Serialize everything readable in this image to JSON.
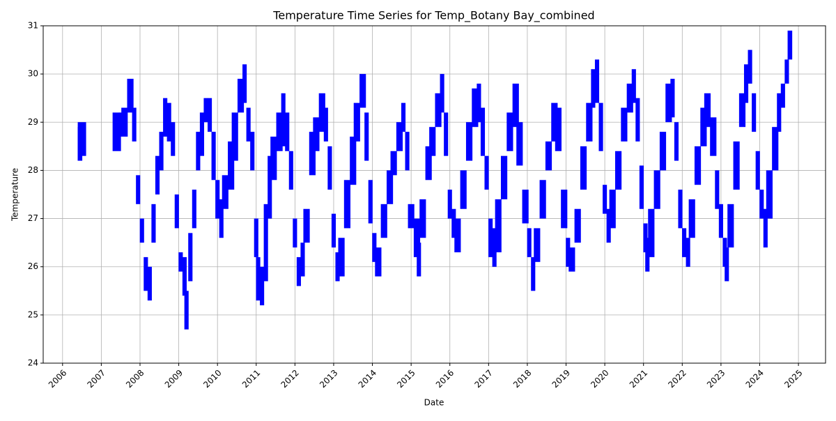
{
  "chart_data": {
    "type": "range",
    "title": "Temperature Time Series for Temp_Botany Bay_combined",
    "x_label": "Date",
    "y_label": "Temperature",
    "color": "#0000ff",
    "grid": true,
    "xlim": [
      2005.5,
      2025.7
    ],
    "ylim": [
      24,
      31
    ],
    "xticks": [
      2006,
      2007,
      2008,
      2009,
      2010,
      2011,
      2012,
      2013,
      2014,
      2015,
      2016,
      2017,
      2018,
      2019,
      2020,
      2021,
      2022,
      2023,
      2024,
      2025
    ],
    "yticks": [
      24,
      25,
      26,
      27,
      28,
      29,
      30,
      31
    ],
    "x": [
      2006.45,
      2006.5,
      2007.4,
      2007.5,
      2007.6,
      2007.75,
      2007.85,
      2007.95,
      2008.05,
      2008.15,
      2008.25,
      2008.35,
      2008.45,
      2008.55,
      2008.65,
      2008.75,
      2008.85,
      2008.95,
      2009.05,
      2009.15,
      2009.2,
      2009.3,
      2009.4,
      2009.5,
      2009.6,
      2009.7,
      2009.8,
      2009.9,
      2010.0,
      2010.1,
      2010.2,
      2010.35,
      2010.45,
      2010.6,
      2010.7,
      2010.8,
      2010.9,
      2011.0,
      2011.05,
      2011.15,
      2011.25,
      2011.35,
      2011.45,
      2011.6,
      2011.7,
      2011.8,
      2011.9,
      2012.0,
      2012.1,
      2012.2,
      2012.3,
      2012.45,
      2012.55,
      2012.7,
      2012.8,
      2012.9,
      2013.0,
      2013.1,
      2013.2,
      2013.35,
      2013.5,
      2013.6,
      2013.75,
      2013.85,
      2013.95,
      2014.05,
      2014.15,
      2014.3,
      2014.45,
      2014.55,
      2014.7,
      2014.8,
      2014.9,
      2015.0,
      2015.15,
      2015.2,
      2015.3,
      2015.45,
      2015.55,
      2015.7,
      2015.8,
      2015.9,
      2016.0,
      2016.1,
      2016.2,
      2016.35,
      2016.5,
      2016.65,
      2016.75,
      2016.85,
      2016.95,
      2017.05,
      2017.15,
      2017.25,
      2017.4,
      2017.55,
      2017.7,
      2017.8,
      2017.95,
      2018.05,
      2018.15,
      2018.25,
      2018.4,
      2018.55,
      2018.7,
      2018.8,
      2018.95,
      2019.05,
      2019.15,
      2019.3,
      2019.45,
      2019.6,
      2019.7,
      2019.8,
      2019.9,
      2020.0,
      2020.1,
      2020.2,
      2020.35,
      2020.5,
      2020.65,
      2020.75,
      2020.85,
      2020.95,
      2021.05,
      2021.1,
      2021.2,
      2021.35,
      2021.5,
      2021.65,
      2021.75,
      2021.85,
      2021.95,
      2022.05,
      2022.15,
      2022.25,
      2022.4,
      2022.55,
      2022.65,
      2022.8,
      2022.9,
      2023.0,
      2023.1,
      2023.15,
      2023.25,
      2023.4,
      2023.55,
      2023.65,
      2023.75,
      2023.85,
      2023.95,
      2024.05,
      2024.15,
      2024.25,
      2024.4,
      2024.5,
      2024.6,
      2024.7,
      2024.78
    ],
    "low": [
      28.2,
      28.3,
      28.4,
      28.7,
      28.7,
      29.2,
      28.6,
      27.3,
      26.5,
      25.5,
      25.3,
      26.5,
      27.5,
      28.0,
      28.7,
      28.6,
      28.3,
      26.8,
      25.9,
      25.4,
      24.7,
      25.7,
      26.8,
      28.0,
      28.3,
      29.0,
      28.8,
      27.8,
      27.0,
      26.6,
      27.2,
      27.6,
      28.2,
      29.2,
      29.4,
      28.6,
      28.0,
      26.2,
      25.3,
      25.2,
      25.7,
      27.0,
      27.8,
      28.4,
      28.5,
      28.4,
      27.6,
      26.4,
      25.6,
      25.8,
      26.5,
      27.9,
      28.4,
      28.8,
      28.6,
      27.6,
      26.4,
      25.7,
      25.8,
      26.8,
      27.7,
      28.6,
      29.3,
      28.2,
      26.9,
      26.1,
      25.8,
      26.6,
      27.3,
      27.9,
      28.4,
      28.8,
      28.0,
      26.8,
      26.2,
      25.8,
      26.6,
      27.8,
      28.3,
      28.9,
      29.2,
      28.3,
      27.0,
      26.6,
      26.3,
      27.2,
      28.2,
      28.9,
      29.0,
      28.3,
      27.6,
      26.2,
      26.0,
      26.3,
      27.4,
      28.4,
      28.9,
      28.1,
      26.9,
      26.2,
      25.5,
      26.1,
      27.0,
      28.0,
      28.6,
      28.4,
      26.8,
      26.0,
      25.9,
      26.5,
      27.6,
      28.6,
      29.3,
      29.4,
      28.4,
      27.1,
      26.5,
      26.8,
      27.6,
      28.6,
      29.2,
      29.4,
      28.6,
      27.2,
      26.3,
      25.9,
      26.2,
      27.2,
      28.0,
      29.0,
      29.1,
      28.2,
      26.8,
      26.2,
      26.0,
      26.6,
      27.7,
      28.5,
      28.9,
      28.3,
      27.2,
      26.6,
      26.0,
      25.7,
      26.4,
      27.6,
      28.9,
      29.4,
      29.8,
      28.8,
      27.6,
      27.0,
      26.4,
      27.0,
      28.0,
      28.8,
      29.3,
      29.8,
      30.3
    ],
    "high": [
      28.9,
      29.0,
      29.2,
      29.2,
      29.3,
      29.9,
      29.3,
      27.9,
      27.0,
      26.2,
      26.0,
      27.3,
      28.3,
      28.8,
      29.5,
      29.4,
      29.0,
      27.5,
      26.3,
      26.2,
      25.5,
      26.7,
      27.6,
      28.8,
      29.2,
      29.5,
      29.5,
      28.8,
      27.8,
      27.4,
      27.9,
      28.6,
      29.2,
      29.9,
      30.2,
      29.3,
      28.8,
      27.0,
      26.2,
      26.0,
      27.3,
      28.3,
      28.7,
      29.2,
      29.6,
      29.2,
      28.4,
      27.0,
      26.2,
      26.5,
      27.2,
      28.8,
      29.1,
      29.6,
      29.3,
      28.5,
      27.1,
      26.3,
      26.6,
      27.8,
      28.7,
      29.4,
      30.0,
      29.2,
      27.8,
      26.7,
      26.4,
      27.3,
      28.0,
      28.4,
      29.0,
      29.4,
      28.8,
      27.3,
      27.0,
      26.5,
      27.4,
      28.5,
      28.9,
      29.6,
      30.0,
      29.2,
      27.6,
      27.2,
      27.0,
      28.0,
      29.0,
      29.7,
      29.8,
      29.3,
      28.3,
      27.0,
      26.8,
      27.4,
      28.3,
      29.2,
      29.8,
      29.0,
      27.6,
      26.8,
      26.2,
      26.8,
      27.8,
      28.6,
      29.4,
      29.3,
      27.6,
      26.6,
      26.4,
      27.2,
      28.5,
      29.4,
      30.1,
      30.3,
      29.4,
      27.7,
      27.2,
      27.6,
      28.4,
      29.3,
      29.8,
      30.1,
      29.5,
      28.1,
      26.9,
      26.6,
      27.2,
      28.0,
      28.8,
      29.8,
      29.9,
      29.0,
      27.6,
      26.8,
      26.6,
      27.4,
      28.5,
      29.3,
      29.6,
      29.1,
      28.0,
      27.3,
      26.6,
      26.4,
      27.3,
      28.6,
      29.6,
      30.2,
      30.5,
      29.6,
      28.4,
      27.6,
      27.2,
      28.0,
      28.9,
      29.6,
      29.8,
      30.3,
      30.9
    ]
  }
}
